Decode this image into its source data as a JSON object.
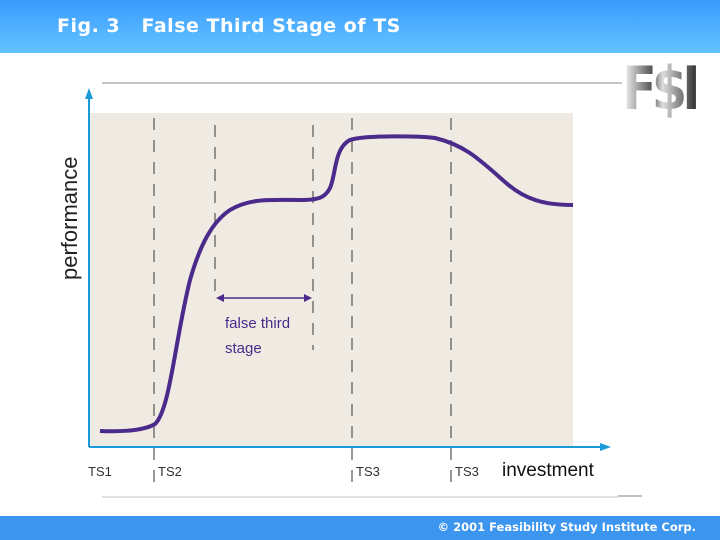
{
  "header": {
    "title": "Fig. 3   False Third Stage of TS"
  },
  "logo": {
    "text": "F$I"
  },
  "diagram": {
    "ylabel": "performance",
    "xlabel": "investment",
    "stage_labels": [
      "TS1",
      "TS2",
      "TS3",
      "TS3"
    ],
    "annotation_line1": "false third",
    "annotation_line2": "stage",
    "colors": {
      "curve": "#4a2a8a",
      "axis": "#1a9ad6",
      "plot_bg": "#efebe3"
    }
  },
  "footer": {
    "copyright": "© 2001 Feasibility Study Institute Corp."
  }
}
